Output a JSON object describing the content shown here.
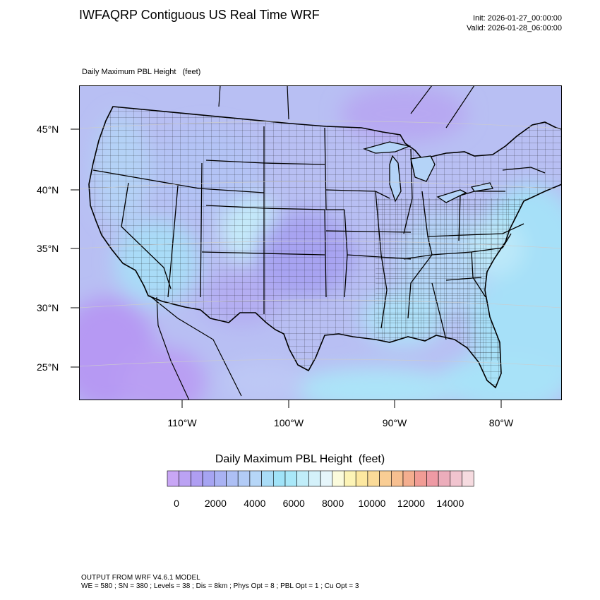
{
  "header": {
    "title": "IWFAQRP Contiguous US Real Time WRF",
    "init": "Init: 2026-01-27_00:00:00",
    "valid": "Valid: 2026-01-28_06:00:00"
  },
  "field_label": "Daily Maximum PBL Height   (feet)",
  "map": {
    "lat_ticks": [
      "45°N",
      "40°N",
      "35°N",
      "30°N",
      "25°N"
    ],
    "lon_ticks": [
      "110°W",
      "100°W",
      "90°W",
      "80°W"
    ]
  },
  "legend": {
    "title": "Daily Maximum PBL Height  (feet)",
    "tick_labels": [
      "0",
      "2000",
      "4000",
      "6000",
      "8000",
      "10000",
      "12000",
      "14000"
    ],
    "colors": [
      "#c8a6f5",
      "#bba2f3",
      "#af9ef2",
      "#a6a4f2",
      "#a9b2f3",
      "#adbff4",
      "#b2cbf6",
      "#b6d6f7",
      "#a9dcf7",
      "#a0e3f8",
      "#a9e8f9",
      "#c0edf9",
      "#d4f1fa",
      "#e6f6fb",
      "#fbfbdc",
      "#fdf4b6",
      "#fde8a0",
      "#fbdb98",
      "#f9cd94",
      "#f7bf90",
      "#f4ae8f",
      "#f19c95",
      "#ee9aa4",
      "#ecadbb",
      "#f1c4cf",
      "#f6dbe0"
    ]
  },
  "footer": {
    "line1": "OUTPUT FROM WRF V4.6.1 MODEL",
    "line2": "WE = 580 ; SN = 380 ; Levels = 38 ; Dis = 8km ; Phys Opt = 8 ; PBL Opt = 1 ; Cu Opt = 3"
  }
}
